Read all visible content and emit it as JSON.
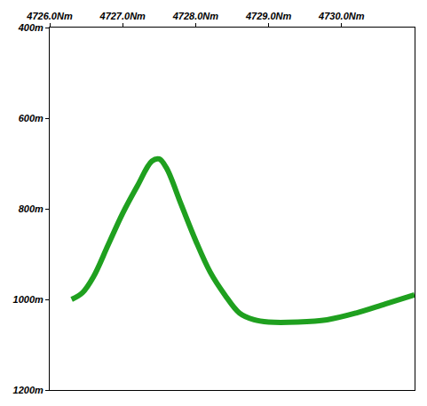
{
  "chart_data": {
    "type": "line",
    "x": [
      4726.3,
      4726.45,
      4726.6,
      4726.8,
      4727.0,
      4727.2,
      4727.4,
      4727.5,
      4727.6,
      4727.8,
      4728.0,
      4728.2,
      4728.4,
      4728.6,
      4728.8,
      4729.0,
      4729.4,
      4729.8,
      4730.2,
      4730.6,
      4731.0
    ],
    "values": [
      1000,
      985,
      950,
      880,
      810,
      750,
      695,
      690,
      710,
      790,
      870,
      940,
      990,
      1030,
      1045,
      1050,
      1050,
      1045,
      1030,
      1010,
      990
    ],
    "color": "#1fa01f",
    "xlim": [
      4726.0,
      4731.0
    ],
    "xticks": [
      {
        "value": 4726,
        "label": "4726.0Nm"
      },
      {
        "value": 4727,
        "label": "4727.0Nm"
      },
      {
        "value": 4728,
        "label": "4728.0Nm"
      },
      {
        "value": 4729,
        "label": "4729.0Nm"
      },
      {
        "value": 4730,
        "label": "4730.0Nm"
      }
    ],
    "ylim": [
      1200,
      400
    ],
    "yticks": [
      {
        "value": 400,
        "label": "400m"
      },
      {
        "value": 600,
        "label": "600m"
      },
      {
        "value": 800,
        "label": "800m"
      },
      {
        "value": 1000,
        "label": "1000m"
      },
      {
        "value": 1200,
        "label": "1200m"
      }
    ],
    "grid": false
  }
}
